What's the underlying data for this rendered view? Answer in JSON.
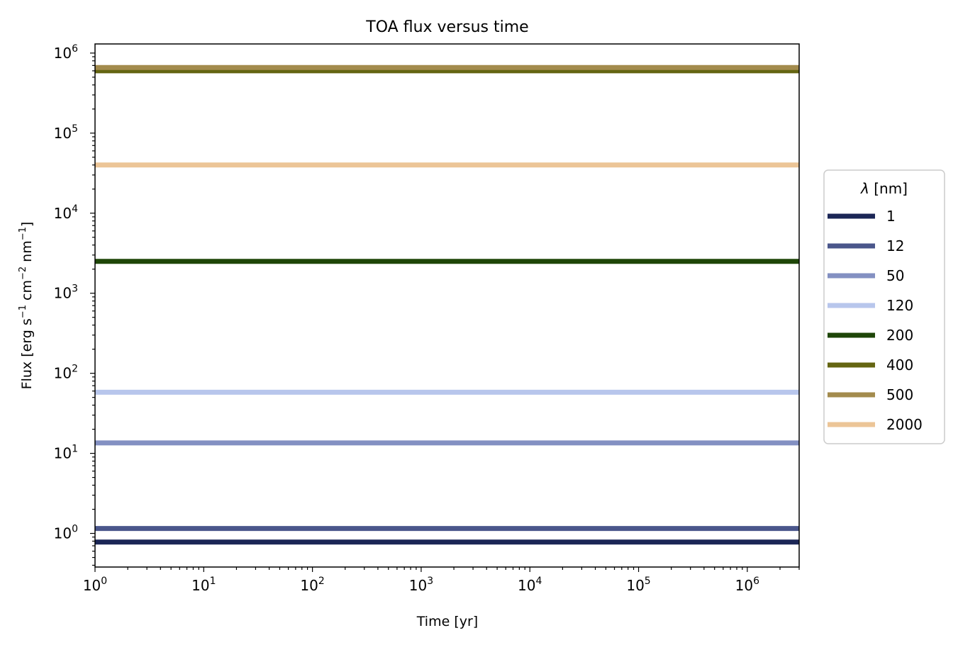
{
  "chart_data": {
    "type": "line",
    "title": "TOA flux versus time",
    "xlabel": "Time [yr]",
    "ylabel_parts": [
      "Flux [erg s",
      "−1",
      " cm",
      "−2",
      " nm",
      "−1",
      "]"
    ],
    "xscale": "log",
    "yscale": "log",
    "xlim": [
      1,
      3000000
    ],
    "ylim": [
      0.38,
      1300000
    ],
    "x_tick_exponents": [
      0,
      1,
      2,
      3,
      4,
      5,
      6
    ],
    "y_tick_exponents": [
      0,
      1,
      2,
      3,
      4,
      5,
      6
    ],
    "tick_base": "10",
    "grid": false,
    "legend": {
      "title_symbol": "λ",
      "title_rest": " [nm]",
      "placement": "center-right outside"
    },
    "series": [
      {
        "name": "1",
        "color": "#1b2656",
        "x": [
          1,
          3000000
        ],
        "y": [
          0.78,
          0.78
        ]
      },
      {
        "name": "12",
        "color": "#4a568b",
        "x": [
          1,
          3000000
        ],
        "y": [
          1.15,
          1.15
        ]
      },
      {
        "name": "50",
        "color": "#8390c2",
        "x": [
          1,
          3000000
        ],
        "y": [
          13.5,
          13.5
        ]
      },
      {
        "name": "120",
        "color": "#b8c6ec",
        "x": [
          1,
          3000000
        ],
        "y": [
          58,
          58
        ]
      },
      {
        "name": "200",
        "color": "#1e4608",
        "x": [
          1,
          3000000
        ],
        "y": [
          2500,
          2500
        ]
      },
      {
        "name": "400",
        "color": "#646511",
        "x": [
          1,
          3000000
        ],
        "y": [
          600000,
          600000
        ]
      },
      {
        "name": "500",
        "color": "#a38b4d",
        "x": [
          1,
          3000000
        ],
        "y": [
          660000,
          660000
        ]
      },
      {
        "name": "2000",
        "color": "#ecc597",
        "x": [
          1,
          3000000
        ],
        "y": [
          40000,
          40000
        ]
      }
    ]
  }
}
